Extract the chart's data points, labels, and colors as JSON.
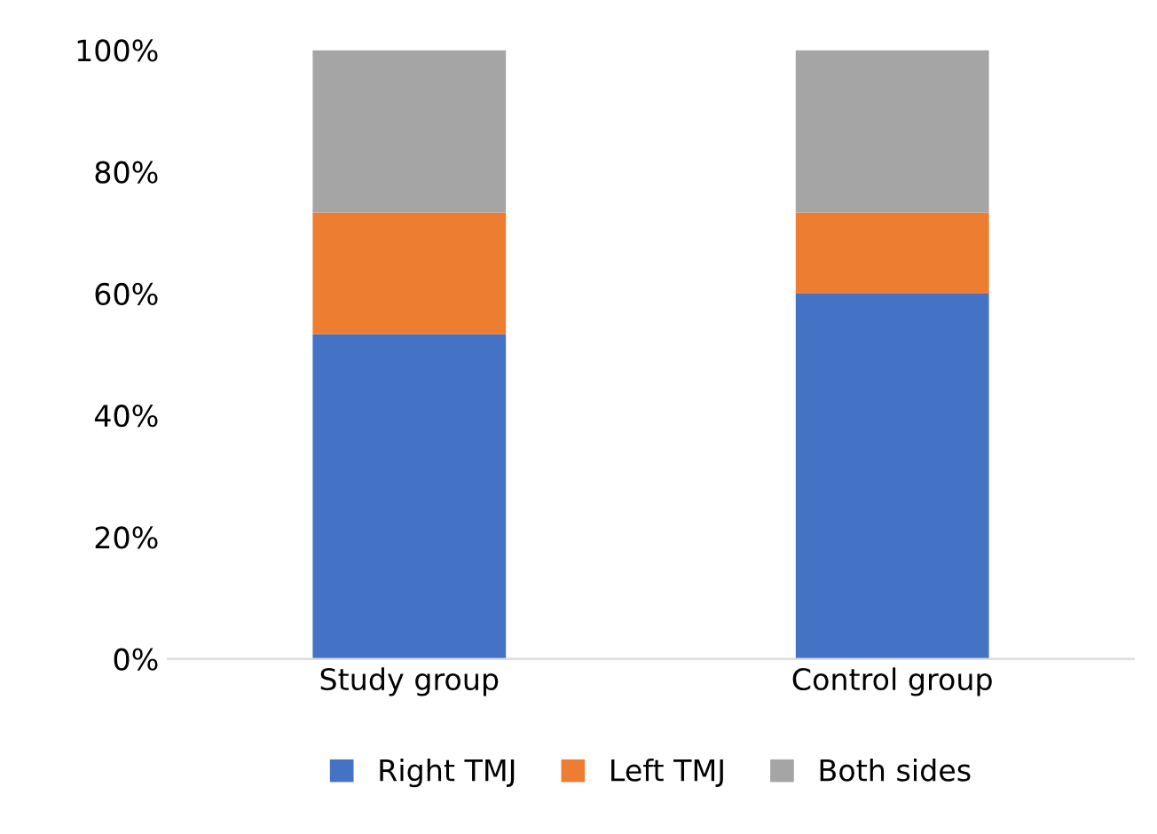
{
  "chart_data": {
    "type": "bar",
    "stacked": true,
    "categories": [
      "Study group",
      "Control group"
    ],
    "series": [
      {
        "name": "Right TMJ",
        "color": "#4472c4",
        "values": [
          53.3,
          60
        ]
      },
      {
        "name": "Left TMJ",
        "color": "#ed7d31",
        "values": [
          20,
          13.3
        ]
      },
      {
        "name": "Both sides",
        "color": "#a5a5a5",
        "values": [
          26.7,
          26.7
        ]
      }
    ],
    "ylim": [
      0,
      100
    ],
    "yticks": [
      {
        "value": 0,
        "label": "0%"
      },
      {
        "value": 20,
        "label": "20%"
      },
      {
        "value": 40,
        "label": "40%"
      },
      {
        "value": 60,
        "label": "60%"
      },
      {
        "value": 80,
        "label": "80%"
      },
      {
        "value": 100,
        "label": "100%"
      }
    ],
    "grid": false,
    "legend": "bottom"
  }
}
